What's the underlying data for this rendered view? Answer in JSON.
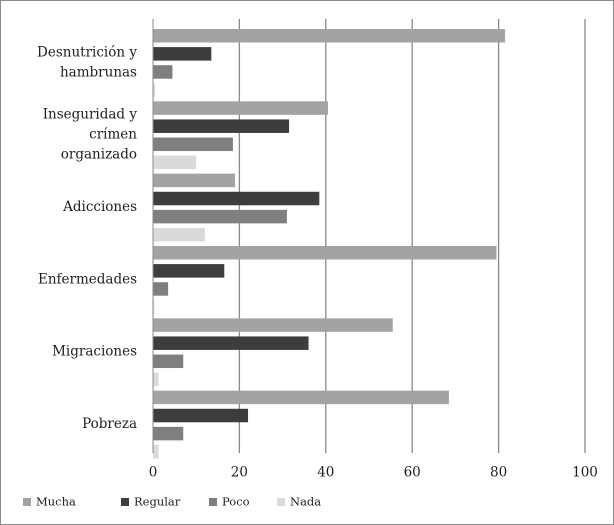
{
  "chart_data": {
    "type": "bar",
    "orientation": "horizontal",
    "categories": [
      [
        "Desnutrición y",
        "hambrunas"
      ],
      [
        "Inseguridad y",
        "crímen",
        "organizado"
      ],
      [
        "Adicciones"
      ],
      [
        "Enfermedades"
      ],
      [
        "Migraciones"
      ],
      [
        "Pobreza"
      ]
    ],
    "series": [
      {
        "name": "Mucha",
        "color": "#a3a3a3",
        "values": [
          81.5,
          40.5,
          19,
          79.5,
          55.5,
          68.5
        ]
      },
      {
        "name": "Regular",
        "color": "#3d3d3d",
        "values": [
          13.5,
          31.5,
          38.5,
          16.5,
          36,
          22
        ]
      },
      {
        "name": "Poco",
        "color": "#7f7f7f",
        "values": [
          4.5,
          18.5,
          31,
          3.5,
          7,
          7
        ]
      },
      {
        "name": "Nada",
        "color": "#dadada",
        "values": [
          0.5,
          10,
          12,
          0.3,
          1.3,
          1.3
        ]
      }
    ],
    "xlim": [
      0,
      100
    ],
    "xticks": [
      0,
      20,
      40,
      60,
      80,
      100
    ],
    "grid": "vertical",
    "legend": "bottom-left"
  }
}
